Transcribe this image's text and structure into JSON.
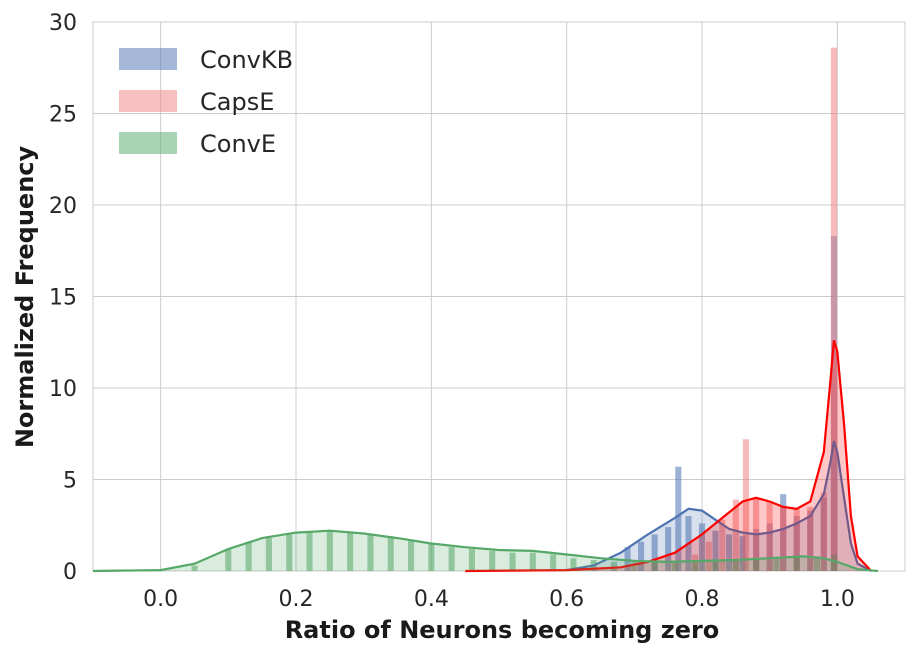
{
  "chart_data": {
    "type": "histogram",
    "title": "",
    "xlabel": "Ratio of Neurons becoming zero",
    "ylabel": "Normalized Frequency",
    "xlim": [
      -0.1,
      1.1
    ],
    "ylim": [
      0,
      30
    ],
    "xticks": [
      0.0,
      0.2,
      0.4,
      0.6,
      0.8,
      1.0
    ],
    "xtick_labels": [
      "0.0",
      "0.2",
      "0.4",
      "0.6",
      "0.8",
      "1.0"
    ],
    "yticks": [
      0,
      5,
      10,
      15,
      20,
      25,
      30
    ],
    "ytick_labels": [
      "0",
      "5",
      "10",
      "15",
      "20",
      "25",
      "30"
    ],
    "grid": true,
    "legend": "top-left",
    "series": [
      {
        "name": "ConvKB",
        "color": "#4c72b0",
        "bars": [
          [
            0.69,
            1.3
          ],
          [
            0.71,
            1.6
          ],
          [
            0.73,
            2.0
          ],
          [
            0.75,
            2.4
          ],
          [
            0.765,
            5.7
          ],
          [
            0.78,
            3.0
          ],
          [
            0.8,
            2.6
          ],
          [
            0.82,
            2.2
          ],
          [
            0.84,
            2.0
          ],
          [
            0.86,
            1.9
          ],
          [
            0.88,
            2.3
          ],
          [
            0.9,
            2.6
          ],
          [
            0.92,
            4.2
          ],
          [
            0.94,
            3.0
          ],
          [
            0.96,
            3.3
          ],
          [
            0.98,
            4.0
          ],
          [
            0.995,
            18.3
          ]
        ],
        "kde": [
          [
            0.6,
            0.05
          ],
          [
            0.64,
            0.3
          ],
          [
            0.68,
            1.0
          ],
          [
            0.72,
            2.0
          ],
          [
            0.76,
            2.9
          ],
          [
            0.78,
            3.4
          ],
          [
            0.8,
            3.3
          ],
          [
            0.82,
            2.8
          ],
          [
            0.84,
            2.3
          ],
          [
            0.86,
            2.1
          ],
          [
            0.88,
            2.0
          ],
          [
            0.9,
            2.1
          ],
          [
            0.92,
            2.3
          ],
          [
            0.94,
            2.6
          ],
          [
            0.96,
            3.0
          ],
          [
            0.98,
            4.2
          ],
          [
            0.99,
            6.0
          ],
          [
            0.995,
            7.1
          ],
          [
            1.0,
            6.5
          ],
          [
            1.01,
            4.0
          ],
          [
            1.02,
            1.5
          ],
          [
            1.03,
            0.4
          ],
          [
            1.05,
            0.0
          ]
        ]
      },
      {
        "name": "CapsE",
        "color": "#ff0000",
        "bar_color": "#f08080",
        "bars": [
          [
            0.79,
            0.9
          ],
          [
            0.81,
            1.6
          ],
          [
            0.83,
            2.8
          ],
          [
            0.85,
            3.9
          ],
          [
            0.865,
            7.2
          ],
          [
            0.88,
            4.0
          ],
          [
            0.9,
            3.8
          ],
          [
            0.92,
            3.5
          ],
          [
            0.94,
            3.4
          ],
          [
            0.96,
            3.5
          ],
          [
            0.98,
            4.3
          ],
          [
            0.995,
            28.6
          ]
        ],
        "kde": [
          [
            0.45,
            0.0
          ],
          [
            0.6,
            0.05
          ],
          [
            0.68,
            0.2
          ],
          [
            0.72,
            0.5
          ],
          [
            0.76,
            1.0
          ],
          [
            0.8,
            2.0
          ],
          [
            0.84,
            3.2
          ],
          [
            0.86,
            3.8
          ],
          [
            0.88,
            4.0
          ],
          [
            0.9,
            3.8
          ],
          [
            0.92,
            3.5
          ],
          [
            0.94,
            3.4
          ],
          [
            0.96,
            3.8
          ],
          [
            0.98,
            6.5
          ],
          [
            0.99,
            10.5
          ],
          [
            0.995,
            12.6
          ],
          [
            1.0,
            12.0
          ],
          [
            1.01,
            8.0
          ],
          [
            1.02,
            3.0
          ],
          [
            1.03,
            0.8
          ],
          [
            1.05,
            0.0
          ]
        ]
      },
      {
        "name": "ConvE",
        "color": "#55a868",
        "bars": [
          [
            0.05,
            0.3
          ],
          [
            0.1,
            1.2
          ],
          [
            0.13,
            1.6
          ],
          [
            0.16,
            1.8
          ],
          [
            0.19,
            2.0
          ],
          [
            0.22,
            2.1
          ],
          [
            0.25,
            2.2
          ],
          [
            0.28,
            2.1
          ],
          [
            0.31,
            2.0
          ],
          [
            0.34,
            1.9
          ],
          [
            0.37,
            1.7
          ],
          [
            0.4,
            1.5
          ],
          [
            0.43,
            1.3
          ],
          [
            0.46,
            1.2
          ],
          [
            0.49,
            1.1
          ],
          [
            0.52,
            1.0
          ],
          [
            0.55,
            1.0
          ],
          [
            0.58,
            0.9
          ],
          [
            0.61,
            0.7
          ],
          [
            0.64,
            0.6
          ],
          [
            0.67,
            0.5
          ],
          [
            0.7,
            0.5
          ],
          [
            0.73,
            0.5
          ],
          [
            0.76,
            0.5
          ],
          [
            0.79,
            0.5
          ],
          [
            0.82,
            0.5
          ],
          [
            0.85,
            0.6
          ],
          [
            0.88,
            0.6
          ],
          [
            0.91,
            0.7
          ],
          [
            0.94,
            0.8
          ],
          [
            0.97,
            0.8
          ],
          [
            0.995,
            0.9
          ]
        ],
        "kde": [
          [
            -0.1,
            0.0
          ],
          [
            0.0,
            0.05
          ],
          [
            0.05,
            0.4
          ],
          [
            0.1,
            1.2
          ],
          [
            0.15,
            1.8
          ],
          [
            0.2,
            2.1
          ],
          [
            0.25,
            2.2
          ],
          [
            0.3,
            2.05
          ],
          [
            0.35,
            1.8
          ],
          [
            0.4,
            1.5
          ],
          [
            0.45,
            1.3
          ],
          [
            0.5,
            1.15
          ],
          [
            0.55,
            1.1
          ],
          [
            0.6,
            0.9
          ],
          [
            0.65,
            0.7
          ],
          [
            0.7,
            0.55
          ],
          [
            0.75,
            0.5
          ],
          [
            0.8,
            0.55
          ],
          [
            0.85,
            0.6
          ],
          [
            0.9,
            0.7
          ],
          [
            0.95,
            0.8
          ],
          [
            0.98,
            0.7
          ],
          [
            1.0,
            0.5
          ],
          [
            1.03,
            0.1
          ],
          [
            1.06,
            0.0
          ]
        ]
      }
    ]
  }
}
